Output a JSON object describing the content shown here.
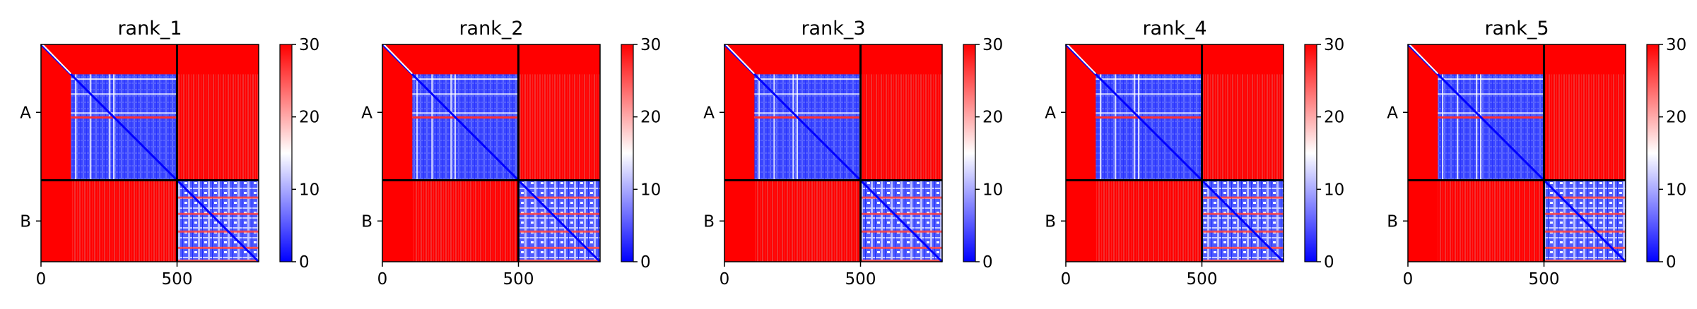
{
  "chart_data": {
    "type": "heatmap",
    "colormap": [
      "#0000ff",
      "#ffffff",
      "#ff0000"
    ],
    "value_range": [
      0,
      30
    ],
    "matrix_size": 800,
    "chain_boundary": 500,
    "panels": [
      {
        "title": "rank_1"
      },
      {
        "title": "rank_2"
      },
      {
        "title": "rank_3"
      },
      {
        "title": "rank_4"
      },
      {
        "title": "rank_5"
      }
    ],
    "x_ticks": [
      {
        "value": 0,
        "label": "0"
      },
      {
        "value": 500,
        "label": "500"
      }
    ],
    "y_ticks": [
      {
        "value": 250,
        "label": "A"
      },
      {
        "value": 650,
        "label": "B"
      }
    ],
    "colorbar_ticks": [
      {
        "value": 0,
        "label": "0"
      },
      {
        "value": 10,
        "label": "10"
      },
      {
        "value": 20,
        "label": "20"
      },
      {
        "value": 30,
        "label": "30"
      }
    ]
  }
}
